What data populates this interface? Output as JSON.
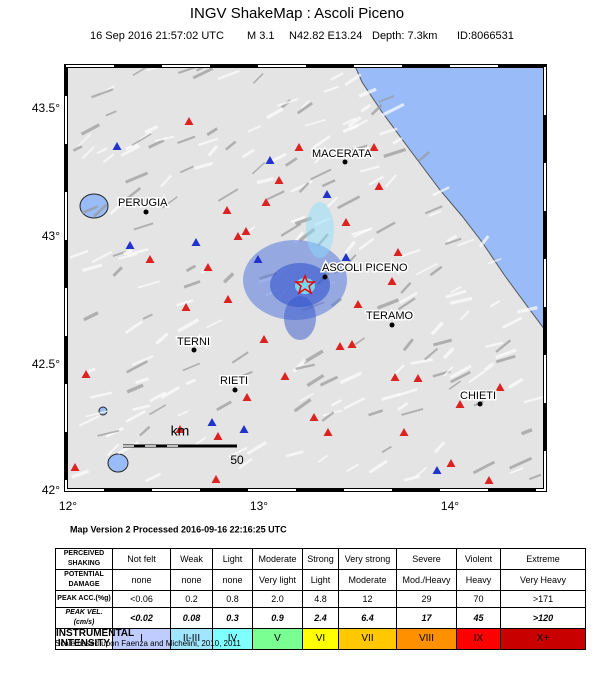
{
  "header": {
    "title": "INGV ShakeMap : Ascoli Piceno",
    "date": "16 Sep 2016 21:57:02 UTC",
    "magnitude": "M 3.1",
    "location": "N42.82 E13.24",
    "depth": "Depth: 7.3km",
    "id": "ID:8066531"
  },
  "map": {
    "lat_labels": [
      "43.5°",
      "43°",
      "42.5°",
      "42°"
    ],
    "lon_labels": [
      "12°",
      "13°",
      "14°"
    ],
    "cities": [
      "MACERATA",
      "PERUGIA",
      "ASCOLI PICENO",
      "TERAMO",
      "TERNI",
      "RIETI",
      "CHIETI"
    ],
    "scale": {
      "unit": "km",
      "distance": "50"
    }
  },
  "processed": "Map Version 2 Processed 2016-09-16 22:16:25 UTC",
  "legend": {
    "rows": [
      [
        "PERCEIVED SHAKING",
        "Not felt",
        "Weak",
        "Light",
        "Moderate",
        "Strong",
        "Very strong",
        "Severe",
        "Violent",
        "Extreme"
      ],
      [
        "POTENTIAL DAMAGE",
        "none",
        "none",
        "none",
        "Very light",
        "Light",
        "Moderate",
        "Mod./Heavy",
        "Heavy",
        "Very Heavy"
      ],
      [
        "PEAK ACC.(%g)",
        "<0.06",
        "0.2",
        "0.8",
        "2.0",
        "4.8",
        "12",
        "29",
        "70",
        ">171"
      ],
      [
        "PEAK VEL.(cm/s)",
        "<0.02",
        "0.08",
        "0.3",
        "0.9",
        "2.4",
        "6.4",
        "17",
        "45",
        ">120"
      ],
      [
        "INSTRUMENTAL INTENSITY",
        "I",
        "II-III",
        "IV",
        "V",
        "VI",
        "VII",
        "VIII",
        "IX",
        "X+"
      ]
    ]
  },
  "credit": "Scale based upon Faenza and Michelini, 2010, 2011"
}
